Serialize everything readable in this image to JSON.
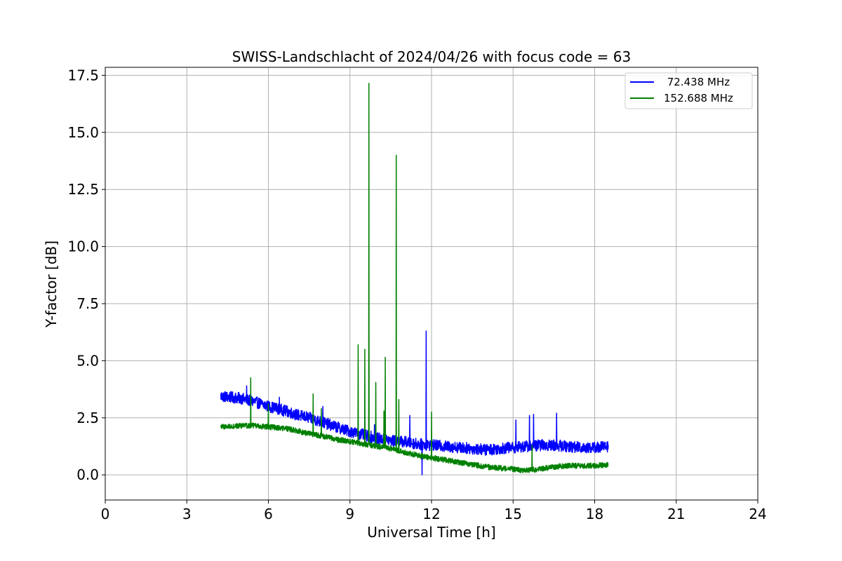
{
  "chart_data": {
    "type": "line",
    "title": "SWISS-Landschlacht of 2024/04/26 with focus code = 63",
    "xlabel": "Universal Time [h]",
    "ylabel": "Y-factor [dB]",
    "xlim": [
      0,
      24
    ],
    "ylim": [
      -1.1,
      17.85
    ],
    "xticks": [
      0,
      3,
      6,
      9,
      12,
      15,
      18,
      21,
      24
    ],
    "xtick_labels": [
      "0",
      "3",
      "6",
      "9",
      "12",
      "15",
      "18",
      "21",
      "24"
    ],
    "yticks": [
      0.0,
      2.5,
      5.0,
      7.5,
      10.0,
      12.5,
      15.0,
      17.5
    ],
    "ytick_labels": [
      "0.0",
      "2.5",
      "5.0",
      "7.5",
      "10.0",
      "12.5",
      "15.0",
      "17.5"
    ],
    "grid": true,
    "legend_position": "top-right",
    "series": [
      {
        "name": " 72.438 MHz",
        "color": "#0000ff",
        "noise_amplitude": 0.25,
        "x": [
          4.25,
          5.0,
          5.5,
          6.0,
          6.5,
          7.0,
          7.5,
          8.0,
          8.5,
          9.0,
          9.5,
          10.0,
          10.5,
          11.0,
          11.5,
          12.0,
          12.5,
          13.0,
          13.5,
          14.0,
          14.5,
          15.0,
          15.5,
          16.0,
          16.5,
          17.0,
          17.5,
          18.0,
          18.5
        ],
        "y": [
          3.45,
          3.35,
          3.2,
          3.0,
          2.85,
          2.65,
          2.5,
          2.3,
          2.1,
          1.9,
          1.75,
          1.6,
          1.5,
          1.45,
          1.35,
          1.3,
          1.25,
          1.2,
          1.15,
          1.1,
          1.15,
          1.2,
          1.25,
          1.3,
          1.3,
          1.25,
          1.2,
          1.2,
          1.25
        ],
        "spikes": [
          {
            "x": 5.2,
            "y": 3.9
          },
          {
            "x": 6.4,
            "y": 3.4
          },
          {
            "x": 8.0,
            "y": 3.0
          },
          {
            "x": 9.9,
            "y": 2.2
          },
          {
            "x": 11.2,
            "y": 2.6
          },
          {
            "x": 11.65,
            "y": 0.0
          },
          {
            "x": 11.8,
            "y": 6.3
          },
          {
            "x": 15.1,
            "y": 2.4
          },
          {
            "x": 15.6,
            "y": 2.6
          },
          {
            "x": 15.75,
            "y": 2.65
          },
          {
            "x": 16.6,
            "y": 2.7
          }
        ]
      },
      {
        "name": "152.688 MHz",
        "color": "#008000",
        "noise_amplitude": 0.12,
        "x": [
          4.25,
          5.0,
          5.5,
          6.0,
          6.5,
          7.0,
          7.5,
          8.0,
          8.5,
          9.0,
          9.5,
          10.0,
          10.5,
          11.0,
          11.5,
          12.0,
          12.5,
          13.0,
          13.5,
          14.0,
          14.5,
          15.0,
          15.5,
          16.0,
          16.5,
          17.0,
          17.5,
          18.0,
          18.5
        ],
        "y": [
          2.1,
          2.15,
          2.15,
          2.1,
          2.05,
          1.95,
          1.8,
          1.7,
          1.55,
          1.45,
          1.35,
          1.25,
          1.15,
          1.0,
          0.85,
          0.75,
          0.65,
          0.55,
          0.45,
          0.35,
          0.3,
          0.25,
          0.2,
          0.25,
          0.35,
          0.4,
          0.4,
          0.4,
          0.45
        ],
        "spikes": [
          {
            "x": 5.35,
            "y": 4.25
          },
          {
            "x": 6.0,
            "y": 3.1
          },
          {
            "x": 7.65,
            "y": 3.55
          },
          {
            "x": 7.95,
            "y": 2.9
          },
          {
            "x": 9.3,
            "y": 5.7
          },
          {
            "x": 9.55,
            "y": 5.5
          },
          {
            "x": 9.7,
            "y": 17.15
          },
          {
            "x": 9.95,
            "y": 4.05
          },
          {
            "x": 10.25,
            "y": 2.8
          },
          {
            "x": 10.3,
            "y": 5.15
          },
          {
            "x": 10.7,
            "y": 14.0
          },
          {
            "x": 10.8,
            "y": 3.3
          },
          {
            "x": 12.0,
            "y": 2.75
          },
          {
            "x": 15.7,
            "y": 1.3
          }
        ]
      }
    ]
  }
}
